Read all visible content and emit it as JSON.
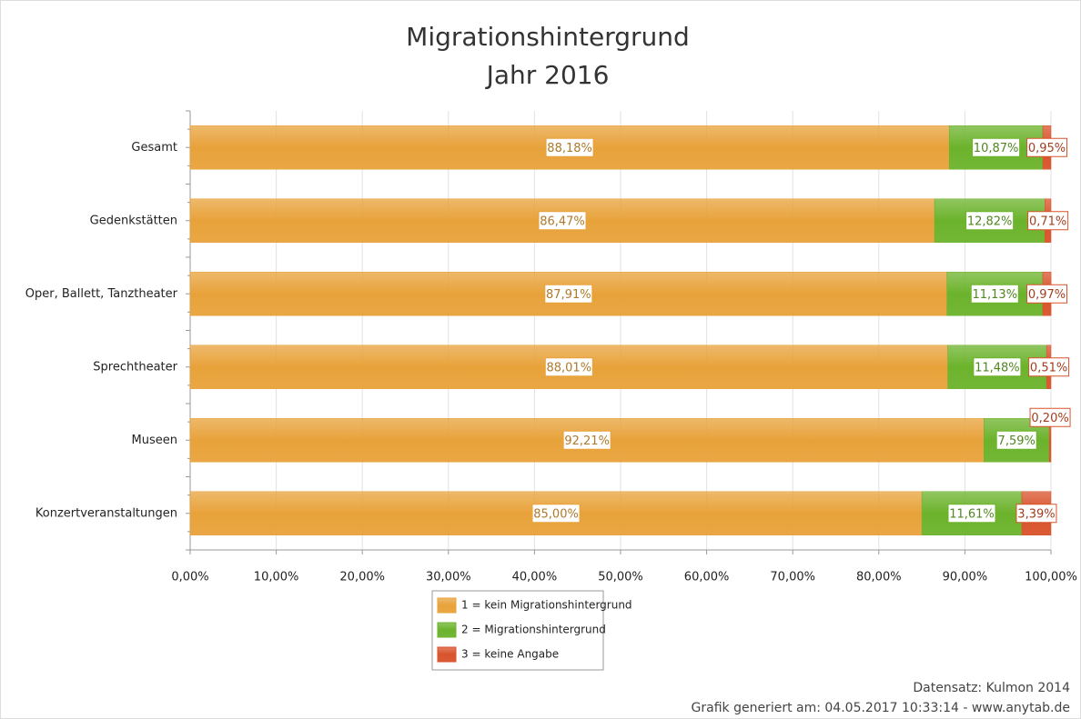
{
  "chart_data": {
    "type": "stacked-bar-horizontal",
    "title": "Migrationshintergrund",
    "subtitle": "Jahr 2016",
    "categories": [
      "Gesamt",
      "Gedenkstätten",
      "Oper, Ballett, Tanztheater",
      "Sprechtheater",
      "Museen",
      "Konzertveranstaltungen"
    ],
    "series": [
      {
        "name": "1 = kein Migrationshintergrund",
        "color": "#e8a23a",
        "values": [
          88.18,
          86.47,
          87.91,
          88.01,
          92.21,
          85.0
        ],
        "value_labels": [
          "88,18%",
          "86,47%",
          "87,91%",
          "88,01%",
          "92,21%",
          "85,00%"
        ]
      },
      {
        "name": "2 = Migrationshintergrund",
        "color": "#6cb32c",
        "values": [
          10.87,
          12.82,
          11.13,
          11.48,
          7.59,
          11.61
        ],
        "value_labels": [
          "10,87%",
          "12,82%",
          "11,13%",
          "11,48%",
          "7,59%",
          "11,61%"
        ]
      },
      {
        "name": "3 = keine Angabe",
        "color": "#d8532b",
        "values": [
          0.95,
          0.71,
          0.97,
          0.51,
          0.2,
          3.39
        ],
        "value_labels": [
          "0,95%",
          "0,71%",
          "0,97%",
          "0,51%",
          "0,20%",
          "3,39%"
        ]
      }
    ],
    "xlim": [
      0,
      100
    ],
    "xticks": [
      {
        "value": 0,
        "label": "0,00%"
      },
      {
        "value": 10,
        "label": "10,00%"
      },
      {
        "value": 20,
        "label": "20,00%"
      },
      {
        "value": 30,
        "label": "30,00%"
      },
      {
        "value": 40,
        "label": "40,00%"
      },
      {
        "value": 50,
        "label": "50,00%"
      },
      {
        "value": 60,
        "label": "60,00%"
      },
      {
        "value": 70,
        "label": "70,00%"
      },
      {
        "value": 80,
        "label": "80,00%"
      },
      {
        "value": 90,
        "label": "90,00%"
      },
      {
        "value": 100,
        "label": "100,00%"
      }
    ],
    "grid": true,
    "legend": "bottom",
    "annotations": [
      "Datensatz: Kulmon 2014",
      "Grafik generiert am: 04.05.2017 10:33:14 - www.anytab.de"
    ]
  }
}
